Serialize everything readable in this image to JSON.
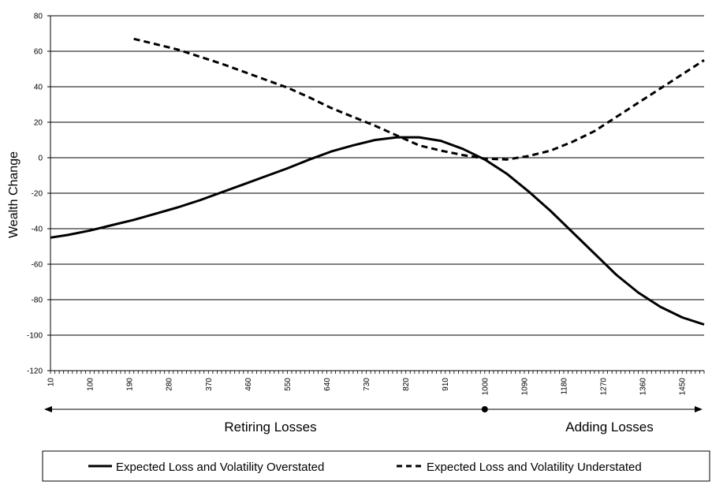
{
  "chart_data": {
    "type": "line",
    "title": "",
    "xlabel": "",
    "ylabel": "Wealth Change",
    "ylim": [
      -120,
      80
    ],
    "xlim": [
      10,
      1500
    ],
    "yticks": [
      -120,
      -100,
      -80,
      -60,
      -40,
      -20,
      0,
      20,
      40,
      60,
      80
    ],
    "xtick_labels": [
      10,
      100,
      190,
      280,
      370,
      460,
      550,
      640,
      730,
      820,
      910,
      1000,
      1090,
      1180,
      1270,
      1360,
      1450
    ],
    "grid": "horizontal",
    "legend_position": "bottom",
    "series": [
      {
        "name": "Expected Loss and Volatility Overstated",
        "style": "solid",
        "color": "#000000",
        "points": [
          [
            10,
            -45
          ],
          [
            50,
            -43.5
          ],
          [
            100,
            -41
          ],
          [
            150,
            -38
          ],
          [
            200,
            -35
          ],
          [
            250,
            -31.5
          ],
          [
            300,
            -28
          ],
          [
            350,
            -24
          ],
          [
            400,
            -19.5
          ],
          [
            450,
            -15
          ],
          [
            500,
            -10.5
          ],
          [
            550,
            -6
          ],
          [
            600,
            -1
          ],
          [
            650,
            3.5
          ],
          [
            700,
            7
          ],
          [
            750,
            10
          ],
          [
            800,
            11.5
          ],
          [
            850,
            11.5
          ],
          [
            900,
            9.5
          ],
          [
            950,
            5
          ],
          [
            1000,
            -1
          ],
          [
            1050,
            -9
          ],
          [
            1100,
            -19
          ],
          [
            1150,
            -30
          ],
          [
            1200,
            -42
          ],
          [
            1250,
            -54
          ],
          [
            1300,
            -66
          ],
          [
            1350,
            -76
          ],
          [
            1400,
            -84
          ],
          [
            1450,
            -90
          ],
          [
            1500,
            -94
          ]
        ]
      },
      {
        "name": "Expected Loss and Volatility Understated",
        "style": "dashed",
        "color": "#000000",
        "points": [
          [
            200,
            67
          ],
          [
            250,
            64
          ],
          [
            300,
            61
          ],
          [
            350,
            57
          ],
          [
            400,
            53
          ],
          [
            450,
            48.5
          ],
          [
            500,
            44
          ],
          [
            550,
            39.5
          ],
          [
            600,
            34
          ],
          [
            650,
            28
          ],
          [
            700,
            23
          ],
          [
            750,
            18
          ],
          [
            800,
            12.5
          ],
          [
            850,
            7
          ],
          [
            900,
            4
          ],
          [
            950,
            1.5
          ],
          [
            1000,
            -0.5
          ],
          [
            1050,
            -1
          ],
          [
            1100,
            1
          ],
          [
            1150,
            4
          ],
          [
            1200,
            9
          ],
          [
            1250,
            15
          ],
          [
            1300,
            23
          ],
          [
            1350,
            31
          ],
          [
            1400,
            39
          ],
          [
            1450,
            47
          ],
          [
            1500,
            55
          ]
        ]
      }
    ],
    "annotations": {
      "divider_x": 1000,
      "left_region_label": "Retiring Losses",
      "right_region_label": "Adding Losses"
    }
  }
}
